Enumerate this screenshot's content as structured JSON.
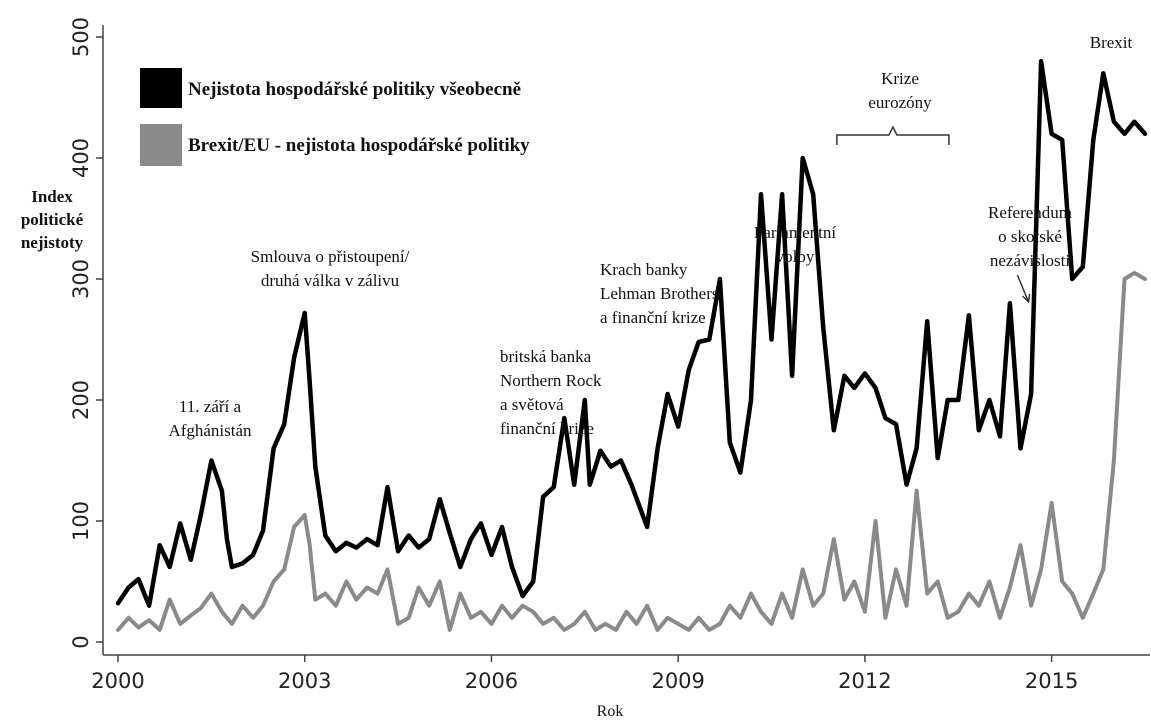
{
  "chart_data": {
    "type": "line",
    "ylabel": "Index politické nejistoty",
    "ylabel_lines": [
      "Index",
      "politické",
      "nejistoty"
    ],
    "xlabel": "Rok",
    "xlim": [
      2000,
      2016.5
    ],
    "ylim": [
      -20,
      510
    ],
    "xticks": [
      2000,
      2003,
      2006,
      2009,
      2012,
      2015
    ],
    "yticks": [
      0,
      100,
      200,
      300,
      400,
      500
    ],
    "grid": false,
    "legend_position": "top-left",
    "series": [
      {
        "name": "Nejistota hospodářské politiky všeobecně",
        "color": "#000000",
        "x": [
          2000.0,
          2000.17,
          2000.33,
          2000.5,
          2000.67,
          2000.83,
          2001.0,
          2001.17,
          2001.33,
          2001.5,
          2001.67,
          2001.75,
          2001.83,
          2002.0,
          2002.17,
          2002.33,
          2002.5,
          2002.67,
          2002.83,
          2003.0,
          2003.08,
          2003.17,
          2003.33,
          2003.5,
          2003.67,
          2003.83,
          2004.0,
          2004.17,
          2004.33,
          2004.5,
          2004.67,
          2004.83,
          2005.0,
          2005.17,
          2005.33,
          2005.5,
          2005.67,
          2005.83,
          2006.0,
          2006.17,
          2006.33,
          2006.5,
          2006.67,
          2006.83,
          2007.0,
          2007.17,
          2007.33,
          2007.5,
          2007.58,
          2007.75,
          2007.92,
          2008.08,
          2008.25,
          2008.5,
          2008.67,
          2008.83,
          2009.0,
          2009.17,
          2009.33,
          2009.5,
          2009.67,
          2009.83,
          2010.0,
          2010.17,
          2010.33,
          2010.5,
          2010.67,
          2010.83,
          2011.0,
          2011.17,
          2011.33,
          2011.5,
          2011.67,
          2011.83,
          2012.0,
          2012.17,
          2012.33,
          2012.5,
          2012.67,
          2012.83,
          2013.0,
          2013.17,
          2013.33,
          2013.5,
          2013.67,
          2013.83,
          2014.0,
          2014.17,
          2014.33,
          2014.5,
          2014.67,
          2014.83,
          2015.0,
          2015.17,
          2015.33,
          2015.5,
          2015.67,
          2015.83,
          2016.0,
          2016.17,
          2016.33,
          2016.5
        ],
        "values": [
          32,
          45,
          52,
          30,
          80,
          62,
          98,
          68,
          105,
          150,
          125,
          85,
          62,
          65,
          72,
          92,
          160,
          180,
          235,
          272,
          215,
          145,
          88,
          75,
          82,
          78,
          85,
          80,
          128,
          75,
          88,
          78,
          85,
          118,
          90,
          62,
          85,
          98,
          72,
          95,
          62,
          38,
          50,
          120,
          128,
          185,
          130,
          200,
          130,
          158,
          145,
          150,
          130,
          95,
          160,
          205,
          178,
          225,
          248,
          250,
          300,
          165,
          140,
          200,
          370,
          250,
          370,
          220,
          400,
          370,
          260,
          175,
          220,
          210,
          222,
          210,
          185,
          180,
          130,
          160,
          265,
          152,
          200,
          200,
          270,
          175,
          200,
          170,
          280,
          160,
          205,
          480,
          420,
          415,
          300,
          310,
          415,
          470,
          430,
          420,
          430,
          420
        ]
      },
      {
        "name": "Brexit/EU - nejistota hospodářské politiky",
        "color": "#8a8a8a",
        "x": [
          2000.0,
          2000.17,
          2000.33,
          2000.5,
          2000.67,
          2000.83,
          2001.0,
          2001.17,
          2001.33,
          2001.5,
          2001.67,
          2001.83,
          2002.0,
          2002.17,
          2002.33,
          2002.5,
          2002.67,
          2002.83,
          2003.0,
          2003.08,
          2003.17,
          2003.33,
          2003.5,
          2003.67,
          2003.83,
          2004.0,
          2004.17,
          2004.33,
          2004.5,
          2004.67,
          2004.83,
          2005.0,
          2005.17,
          2005.33,
          2005.5,
          2005.67,
          2005.83,
          2006.0,
          2006.17,
          2006.33,
          2006.5,
          2006.67,
          2006.83,
          2007.0,
          2007.17,
          2007.33,
          2007.5,
          2007.67,
          2007.83,
          2008.0,
          2008.17,
          2008.33,
          2008.5,
          2008.67,
          2008.83,
          2009.0,
          2009.17,
          2009.33,
          2009.5,
          2009.67,
          2009.83,
          2010.0,
          2010.17,
          2010.33,
          2010.5,
          2010.67,
          2010.83,
          2011.0,
          2011.17,
          2011.33,
          2011.5,
          2011.67,
          2011.83,
          2012.0,
          2012.17,
          2012.33,
          2012.5,
          2012.67,
          2012.83,
          2013.0,
          2013.17,
          2013.33,
          2013.5,
          2013.67,
          2013.83,
          2014.0,
          2014.17,
          2014.33,
          2014.5,
          2014.67,
          2014.83,
          2015.0,
          2015.17,
          2015.33,
          2015.5,
          2015.67,
          2015.83,
          2016.0,
          2016.17,
          2016.33,
          2016.5
        ],
        "values": [
          10,
          20,
          12,
          18,
          10,
          35,
          15,
          22,
          28,
          40,
          25,
          15,
          30,
          20,
          30,
          50,
          60,
          95,
          105,
          80,
          35,
          40,
          30,
          50,
          35,
          45,
          40,
          60,
          15,
          20,
          45,
          30,
          50,
          10,
          40,
          20,
          25,
          15,
          30,
          20,
          30,
          25,
          15,
          20,
          10,
          15,
          25,
          10,
          15,
          10,
          25,
          15,
          30,
          10,
          20,
          15,
          10,
          20,
          10,
          15,
          30,
          20,
          40,
          25,
          15,
          40,
          20,
          60,
          30,
          40,
          85,
          35,
          50,
          25,
          100,
          20,
          60,
          30,
          125,
          40,
          50,
          20,
          25,
          40,
          30,
          50,
          20,
          45,
          80,
          30,
          60,
          115,
          50,
          40,
          20,
          40,
          60,
          150,
          300,
          305,
          300
        ]
      }
    ],
    "annotations": [
      {
        "lines": [
          "11. září a",
          "Afghánistán"
        ],
        "x": 2001.4,
        "y": 195
      },
      {
        "lines": [
          "Smlouva o přistoupení/",
          "druhá válka v zálivu"
        ],
        "x": 2002.9,
        "y": 310
      },
      {
        "lines": [
          "britská banka",
          "Northern Rock",
          "a světová",
          "finanční krize"
        ],
        "x": 2006.3,
        "y": 228
      },
      {
        "lines": [
          "Krach banky",
          "Lehman Brothers",
          "a finanční krize"
        ],
        "x": 2008.9,
        "y": 285
      },
      {
        "lines": [
          "Parlamentní",
          "volby"
        ],
        "x": 2010.5,
        "y": 335
      },
      {
        "lines": [
          "Krize",
          "eurozóny"
        ],
        "x": 2012.7,
        "y": 440
      },
      {
        "lines": [
          "Referendum",
          "o skotské",
          "nezávislosti"
        ],
        "x": 2015.1,
        "y": 350
      },
      {
        "lines": [
          "Brexit"
        ],
        "x": 2015.9,
        "y": 495
      }
    ]
  }
}
